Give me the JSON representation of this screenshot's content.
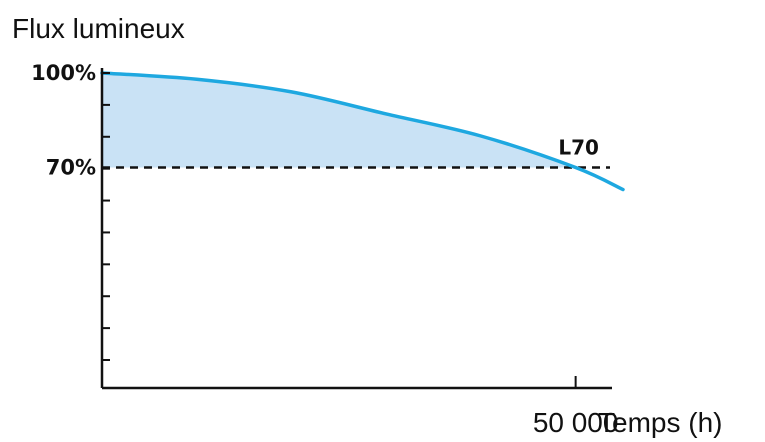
{
  "chart_data": {
    "type": "area",
    "title": "",
    "ylabel": "Flux lumineux",
    "xlabel": "Temps (h)",
    "xlim": [
      0,
      55000
    ],
    "ylim": [
      0,
      100
    ],
    "y_ticks": [
      {
        "value": 100,
        "label": "100%"
      },
      {
        "value": 70,
        "label": "70%"
      }
    ],
    "x_ticks": [
      {
        "value": 50000,
        "label": "50 000"
      }
    ],
    "series": [
      {
        "x": [
          0,
          10000,
          20000,
          30000,
          40000,
          50000,
          55000
        ],
        "y": [
          100,
          98,
          94,
          87,
          80,
          70,
          63
        ]
      }
    ],
    "threshold": {
      "value": 70,
      "label": "L70",
      "x": 50000
    },
    "grid": false,
    "colors": {
      "curve": "#1ea8e0",
      "fill": "#c9e2f5",
      "axis": "#111111",
      "threshold_line": "#111111"
    }
  }
}
